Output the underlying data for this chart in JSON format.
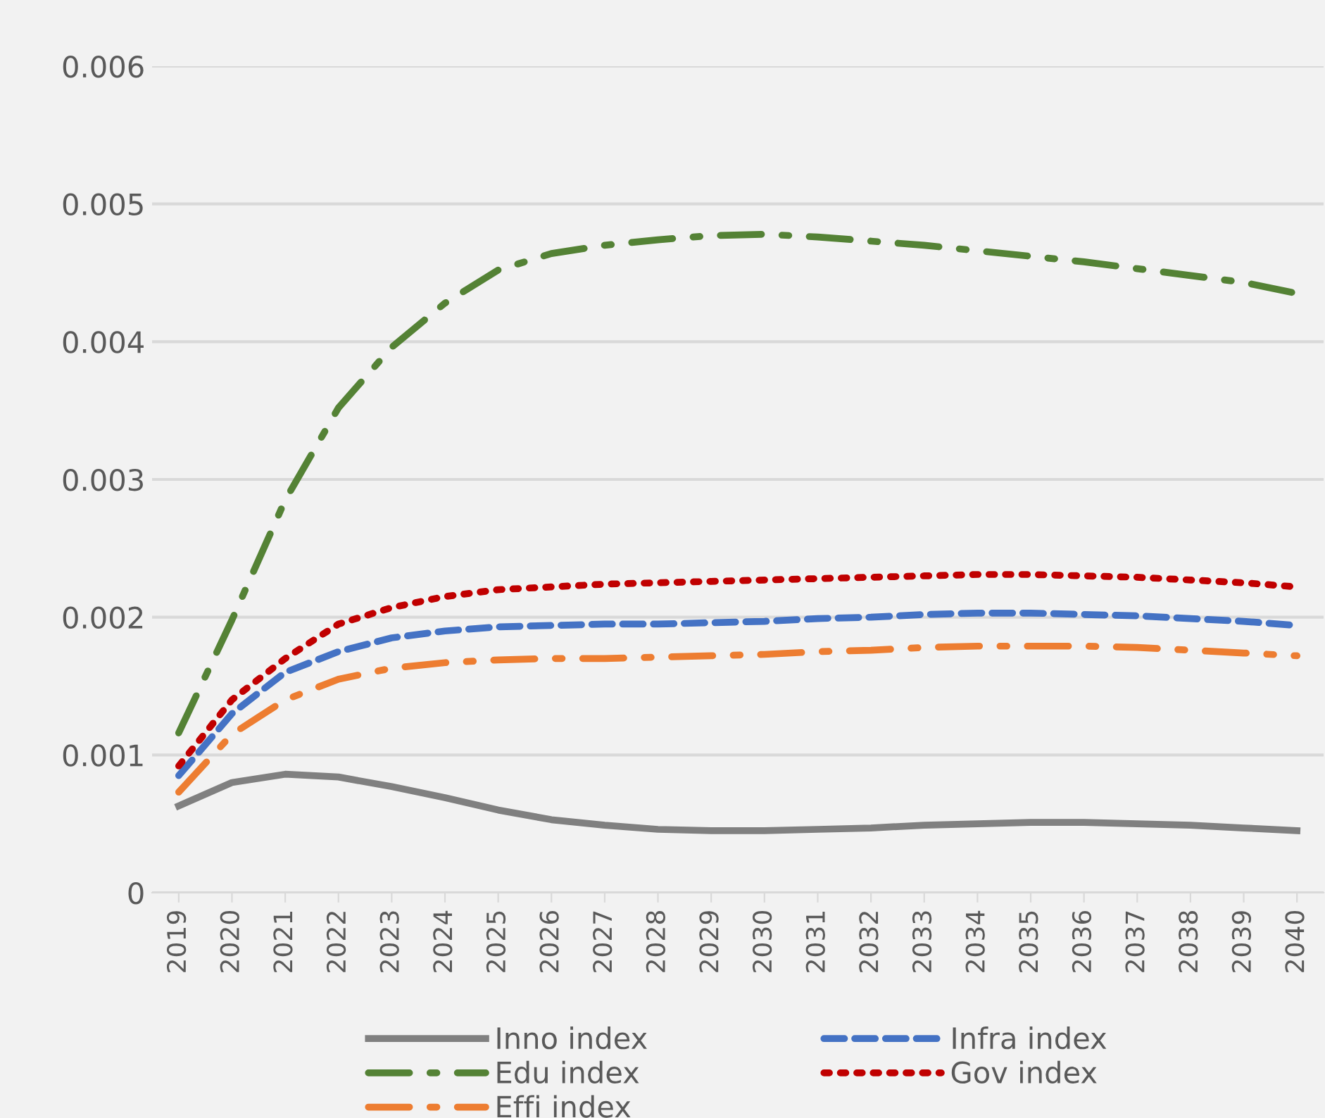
{
  "chart_data": {
    "type": "line",
    "categories": [
      "2019",
      "2020",
      "2021",
      "2022",
      "2023",
      "2024",
      "2025",
      "2026",
      "2027",
      "2028",
      "2029",
      "2030",
      "2031",
      "2032",
      "2033",
      "2034",
      "2035",
      "2036",
      "2037",
      "2038",
      "2039",
      "2040"
    ],
    "ylim": [
      0,
      0.006
    ],
    "yticks": [
      {
        "value": 0,
        "label": "0"
      },
      0.001,
      0.002,
      0.003,
      0.004,
      0.005,
      0.006
    ],
    "grid": "y",
    "legend": "bottom",
    "marker": "none",
    "series": [
      {
        "name": "Inno index",
        "color": "#808080",
        "line_style": "solid",
        "values": [
          0.00063,
          0.0008,
          0.00086,
          0.00084,
          0.00077,
          0.00069,
          0.0006,
          0.00053,
          0.00049,
          0.00046,
          0.00045,
          0.00045,
          0.00046,
          0.00047,
          0.00049,
          0.0005,
          0.00051,
          0.00051,
          0.0005,
          0.00049,
          0.00047,
          0.00045
        ]
      },
      {
        "name": "Edu index",
        "color": "#548235",
        "line_style": "dashdot",
        "values": [
          0.00116,
          0.00198,
          0.00285,
          0.00352,
          0.00396,
          0.00428,
          0.00452,
          0.00464,
          0.0047,
          0.00474,
          0.00477,
          0.00478,
          0.00476,
          0.00473,
          0.0047,
          0.00466,
          0.00462,
          0.00458,
          0.00453,
          0.00448,
          0.00443,
          0.00435
        ]
      },
      {
        "name": "Effi index",
        "color": "#ed7d31",
        "line_style": "dashdot",
        "values": [
          0.00073,
          0.00115,
          0.0014,
          0.00155,
          0.00163,
          0.00167,
          0.00169,
          0.0017,
          0.0017,
          0.00171,
          0.00172,
          0.00173,
          0.00175,
          0.00176,
          0.00178,
          0.00179,
          0.00179,
          0.00179,
          0.00178,
          0.00176,
          0.00174,
          0.00172
        ]
      },
      {
        "name": "Infra index",
        "color": "#4472c4",
        "line_style": "dashed",
        "values": [
          0.00085,
          0.0013,
          0.0016,
          0.00175,
          0.00185,
          0.0019,
          0.00193,
          0.00194,
          0.00195,
          0.00195,
          0.00196,
          0.00197,
          0.00199,
          0.002,
          0.00202,
          0.00203,
          0.00203,
          0.00202,
          0.00201,
          0.00199,
          0.00197,
          0.00194
        ]
      },
      {
        "name": "Gov index",
        "color": "#c00000",
        "line_style": "dotted",
        "values": [
          0.00092,
          0.0014,
          0.0017,
          0.00195,
          0.00207,
          0.00215,
          0.0022,
          0.00222,
          0.00224,
          0.00225,
          0.00226,
          0.00227,
          0.00228,
          0.00229,
          0.0023,
          0.00231,
          0.00231,
          0.0023,
          0.00229,
          0.00227,
          0.00225,
          0.00222
        ]
      }
    ]
  }
}
